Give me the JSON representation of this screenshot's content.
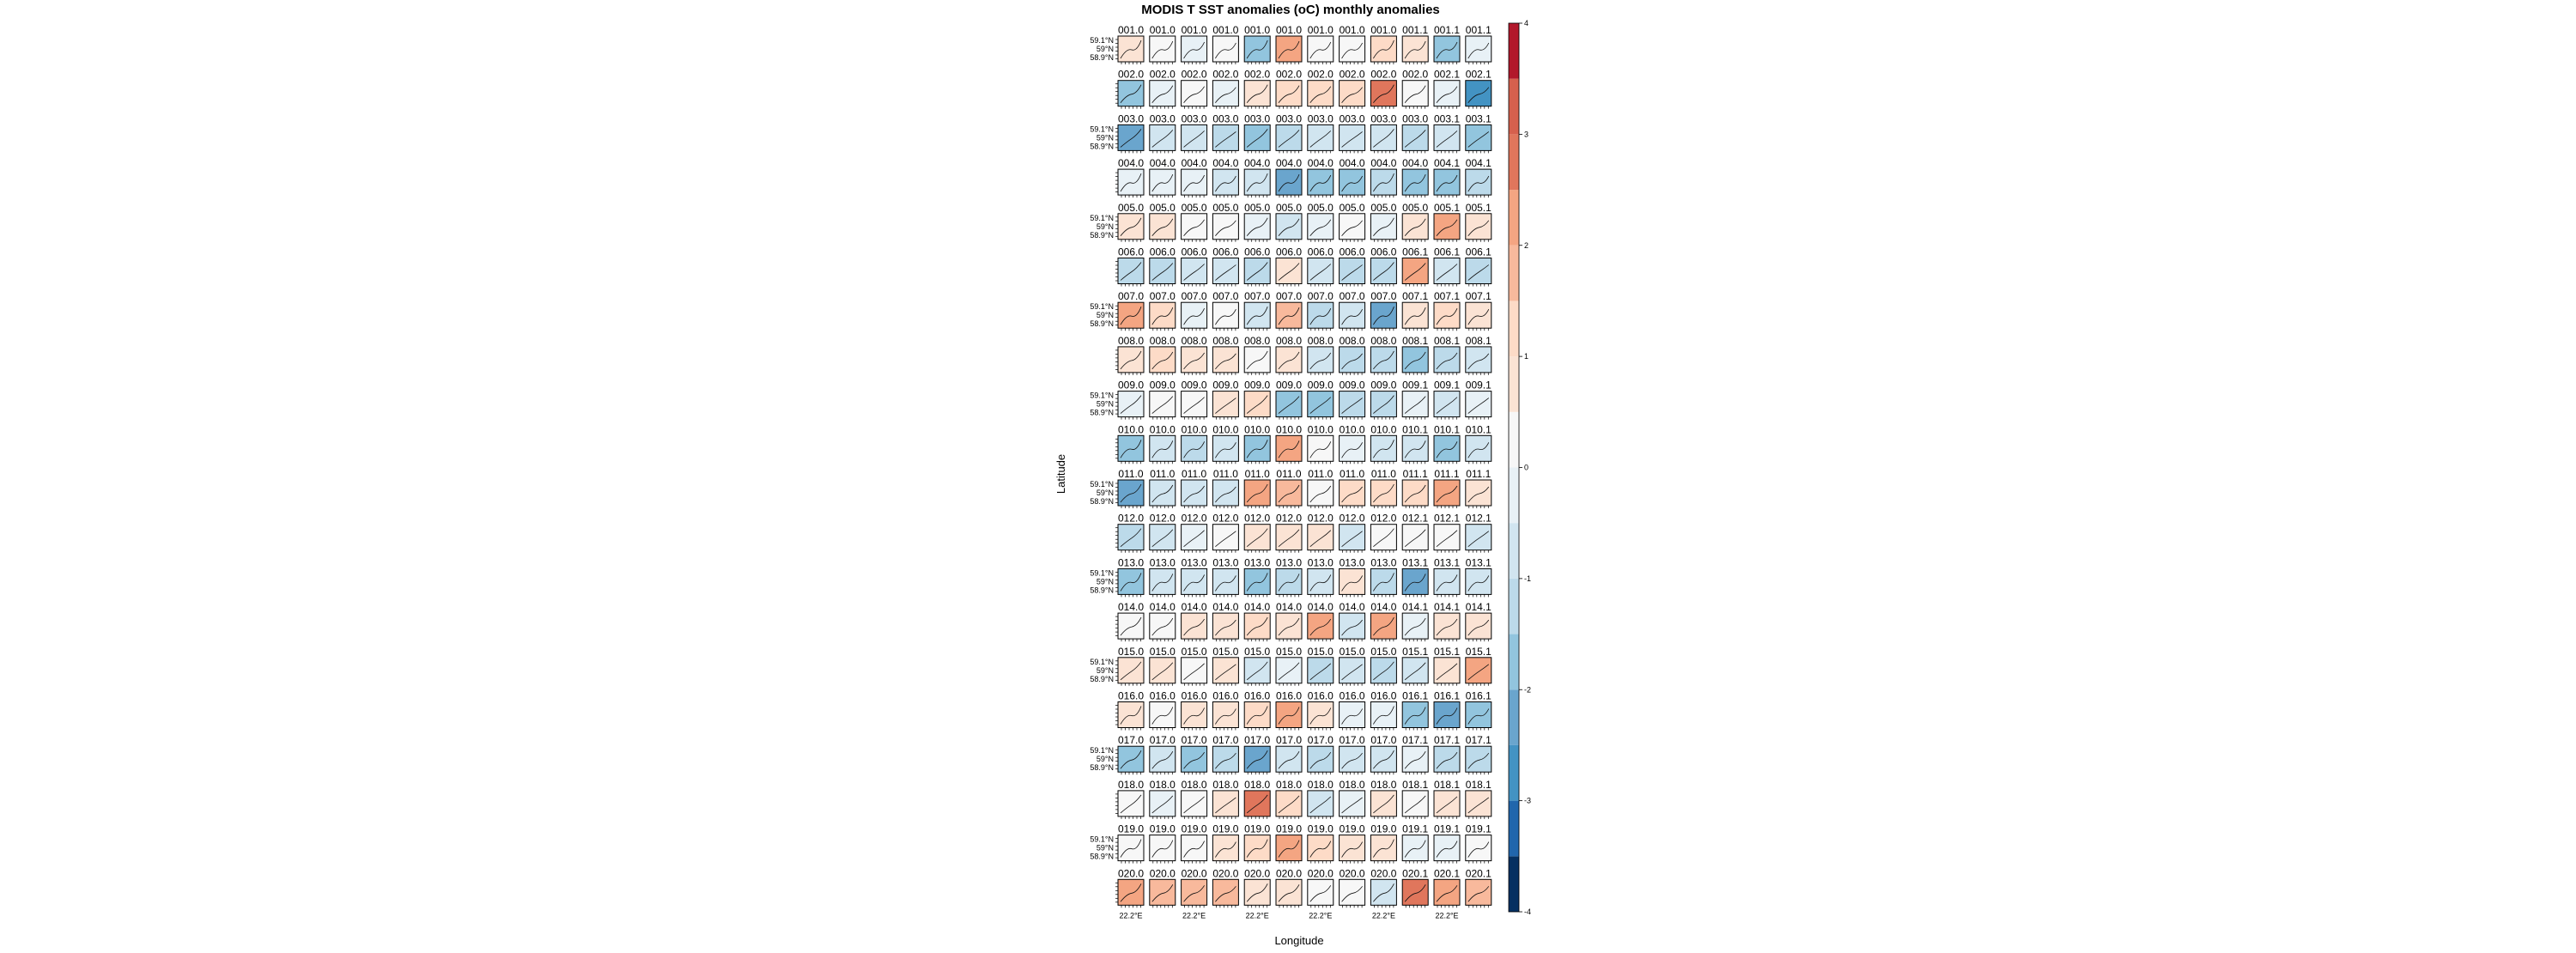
{
  "chart_data": {
    "type": "heatmap",
    "title": "MODIS T SST anomalies (oC) monthly anomalies",
    "xlabel": "Longitude",
    "ylabel": "Latitude",
    "grid": {
      "rows": 20,
      "cols": 12
    },
    "panel_labels": [
      [
        "001.0",
        "001.0",
        "001.0",
        "001.0",
        "001.0",
        "001.0",
        "001.0",
        "001.0",
        "001.0",
        "001.1",
        "001.1",
        "001.1"
      ],
      [
        "002.0",
        "002.0",
        "002.0",
        "002.0",
        "002.0",
        "002.0",
        "002.0",
        "002.0",
        "002.0",
        "002.0",
        "002.1",
        "002.1"
      ],
      [
        "003.0",
        "003.0",
        "003.0",
        "003.0",
        "003.0",
        "003.0",
        "003.0",
        "003.0",
        "003.0",
        "003.0",
        "003.1",
        "003.1"
      ],
      [
        "004.0",
        "004.0",
        "004.0",
        "004.0",
        "004.0",
        "004.0",
        "004.0",
        "004.0",
        "004.0",
        "004.0",
        "004.1",
        "004.1"
      ],
      [
        "005.0",
        "005.0",
        "005.0",
        "005.0",
        "005.0",
        "005.0",
        "005.0",
        "005.0",
        "005.0",
        "005.0",
        "005.1",
        "005.1"
      ],
      [
        "006.0",
        "006.0",
        "006.0",
        "006.0",
        "006.0",
        "006.0",
        "006.0",
        "006.0",
        "006.0",
        "006.1",
        "006.1",
        "006.1"
      ],
      [
        "007.0",
        "007.0",
        "007.0",
        "007.0",
        "007.0",
        "007.0",
        "007.0",
        "007.0",
        "007.0",
        "007.1",
        "007.1",
        "007.1"
      ],
      [
        "008.0",
        "008.0",
        "008.0",
        "008.0",
        "008.0",
        "008.0",
        "008.0",
        "008.0",
        "008.0",
        "008.1",
        "008.1",
        "008.1"
      ],
      [
        "009.0",
        "009.0",
        "009.0",
        "009.0",
        "009.0",
        "009.0",
        "009.0",
        "009.0",
        "009.0",
        "009.1",
        "009.1",
        "009.1"
      ],
      [
        "010.0",
        "010.0",
        "010.0",
        "010.0",
        "010.0",
        "010.0",
        "010.0",
        "010.0",
        "010.0",
        "010.1",
        "010.1",
        "010.1"
      ],
      [
        "011.0",
        "011.0",
        "011.0",
        "011.0",
        "011.0",
        "011.0",
        "011.0",
        "011.0",
        "011.0",
        "011.1",
        "011.1",
        "011.1"
      ],
      [
        "012.0",
        "012.0",
        "012.0",
        "012.0",
        "012.0",
        "012.0",
        "012.0",
        "012.0",
        "012.0",
        "012.1",
        "012.1",
        "012.1"
      ],
      [
        "013.0",
        "013.0",
        "013.0",
        "013.0",
        "013.0",
        "013.0",
        "013.0",
        "013.0",
        "013.0",
        "013.1",
        "013.1",
        "013.1"
      ],
      [
        "014.0",
        "014.0",
        "014.0",
        "014.0",
        "014.0",
        "014.0",
        "014.0",
        "014.0",
        "014.0",
        "014.1",
        "014.1",
        "014.1"
      ],
      [
        "015.0",
        "015.0",
        "015.0",
        "015.0",
        "015.0",
        "015.0",
        "015.0",
        "015.0",
        "015.0",
        "015.1",
        "015.1",
        "015.1"
      ],
      [
        "016.0",
        "016.0",
        "016.0",
        "016.0",
        "016.0",
        "016.0",
        "016.0",
        "016.0",
        "016.0",
        "016.1",
        "016.1",
        "016.1"
      ],
      [
        "017.0",
        "017.0",
        "017.0",
        "017.0",
        "017.0",
        "017.0",
        "017.0",
        "017.0",
        "017.0",
        "017.1",
        "017.1",
        "017.1"
      ],
      [
        "018.0",
        "018.0",
        "018.0",
        "018.0",
        "018.0",
        "018.0",
        "018.0",
        "018.0",
        "018.0",
        "018.1",
        "018.1",
        "018.1"
      ],
      [
        "019.0",
        "019.0",
        "019.0",
        "019.0",
        "019.0",
        "019.0",
        "019.0",
        "019.0",
        "019.0",
        "019.1",
        "019.1",
        "019.1"
      ],
      [
        "020.0",
        "020.0",
        "020.0",
        "020.0",
        "020.0",
        "020.0",
        "020.0",
        "020.0",
        "020.0",
        "020.1",
        "020.1",
        "020.1"
      ]
    ],
    "anomaly_values": [
      [
        0.5,
        0.2,
        -0.1,
        0.3,
        -1.8,
        2.2,
        0.4,
        0.3,
        1.1,
        0.5,
        -1.6,
        -0.4
      ],
      [
        -1.9,
        -0.2,
        0.1,
        -0.3,
        0.6,
        1.2,
        1.0,
        1.3,
        2.6,
        0.2,
        -0.1,
        -2.9
      ],
      [
        -2.3,
        -0.6,
        -0.8,
        -1.2,
        -2.0,
        -1.2,
        -1.0,
        -0.8,
        -0.6,
        -1.2,
        -0.8,
        -1.6
      ],
      [
        -0.5,
        -0.2,
        -0.3,
        -0.8,
        -0.9,
        -2.2,
        -1.9,
        -1.7,
        -1.1,
        -1.6,
        -1.8,
        -1.2
      ],
      [
        0.8,
        0.5,
        0.2,
        0.3,
        -0.1,
        -0.8,
        -0.5,
        0.1,
        -0.3,
        0.9,
        2.2,
        0.8
      ],
      [
        -1.3,
        -1.1,
        -0.6,
        -1.0,
        -1.2,
        0.9,
        -0.9,
        -1.3,
        -1.2,
        2.0,
        -0.6,
        -1.4
      ],
      [
        2.3,
        1.0,
        -0.1,
        0.3,
        -0.9,
        1.5,
        -1.4,
        -0.8,
        -2.1,
        0.6,
        1.1,
        0.5
      ],
      [
        0.9,
        1.2,
        0.6,
        0.9,
        0.4,
        0.5,
        -1.0,
        -1.4,
        -1.2,
        -1.6,
        -1.1,
        -0.6
      ],
      [
        -0.3,
        0.2,
        0.4,
        0.6,
        1.3,
        -2.0,
        -1.8,
        -1.4,
        -1.1,
        -0.4,
        -0.8,
        -0.5
      ],
      [
        -1.9,
        -0.9,
        -1.2,
        -1.0,
        -1.6,
        2.2,
        0.3,
        -0.5,
        -0.8,
        -0.9,
        -1.7,
        -0.9
      ],
      [
        -2.1,
        -0.9,
        -0.6,
        -0.8,
        2.0,
        1.8,
        0.4,
        1.1,
        1.2,
        1.4,
        2.3,
        0.7
      ],
      [
        -1.1,
        -0.8,
        -0.4,
        0.3,
        0.6,
        0.8,
        0.5,
        -0.7,
        0.2,
        0.4,
        0.4,
        -0.6
      ],
      [
        -1.6,
        -0.7,
        -0.6,
        -0.8,
        -1.9,
        -1.4,
        -0.9,
        0.8,
        -1.1,
        -2.4,
        -0.9,
        -0.6
      ],
      [
        0.4,
        0.3,
        0.6,
        0.8,
        1.1,
        0.6,
        2.2,
        -0.7,
        2.4,
        -0.5,
        0.5,
        0.9
      ],
      [
        0.9,
        0.6,
        0.3,
        0.5,
        -0.7,
        -0.4,
        -1.1,
        -0.6,
        -1.3,
        -0.9,
        0.7,
        2.3
      ],
      [
        0.7,
        0.3,
        0.5,
        0.9,
        1.4,
        2.4,
        0.8,
        -0.5,
        -0.5,
        -1.8,
        -2.5,
        -1.6
      ],
      [
        -1.7,
        -1.0,
        -1.6,
        -1.5,
        -2.1,
        -0.9,
        -1.2,
        -1.0,
        -0.8,
        -0.4,
        -1.2,
        -1.3
      ],
      [
        0.4,
        -0.2,
        0.1,
        0.6,
        2.5,
        1.1,
        -0.9,
        -0.4,
        0.8,
        0.2,
        0.7,
        0.6
      ],
      [
        0.2,
        0.1,
        0.4,
        0.5,
        1.0,
        2.2,
        1.4,
        0.9,
        0.5,
        -0.3,
        -0.1,
        0.2
      ],
      [
        2.0,
        1.9,
        1.8,
        1.6,
        0.6,
        0.5,
        0.3,
        0.4,
        -0.8,
        2.6,
        2.2,
        1.8
      ]
    ],
    "y_tick_labels": [
      "59.1°N",
      "59°N",
      "58.9°N"
    ],
    "x_tick_label": "22.2°E",
    "colorbar": {
      "ticks": [
        4,
        3,
        2,
        1,
        0,
        -1,
        -2,
        -3,
        -4
      ],
      "tick_labels": [
        "4",
        "3",
        "2",
        "1",
        "0",
        "-1",
        "-2",
        "-3",
        "-4"
      ],
      "range": [
        -4,
        4
      ],
      "levels": [
        -4,
        -3.5,
        -3,
        -2.5,
        -2,
        -1.5,
        -1,
        -0.5,
        0,
        0.5,
        1,
        1.5,
        2,
        2.5,
        3,
        3.5,
        4
      ],
      "colors": [
        "#053061",
        "#2166ac",
        "#4393c3",
        "#6aa5cd",
        "#92c5de",
        "#bcdaea",
        "#d1e5f0",
        "#e8f1f6",
        "#f7f7f7",
        "#fbe3d4",
        "#fddbc7",
        "#f8b99c",
        "#f4a582",
        "#e0765c",
        "#d6604d",
        "#b2182b",
        "#67001f"
      ]
    }
  }
}
